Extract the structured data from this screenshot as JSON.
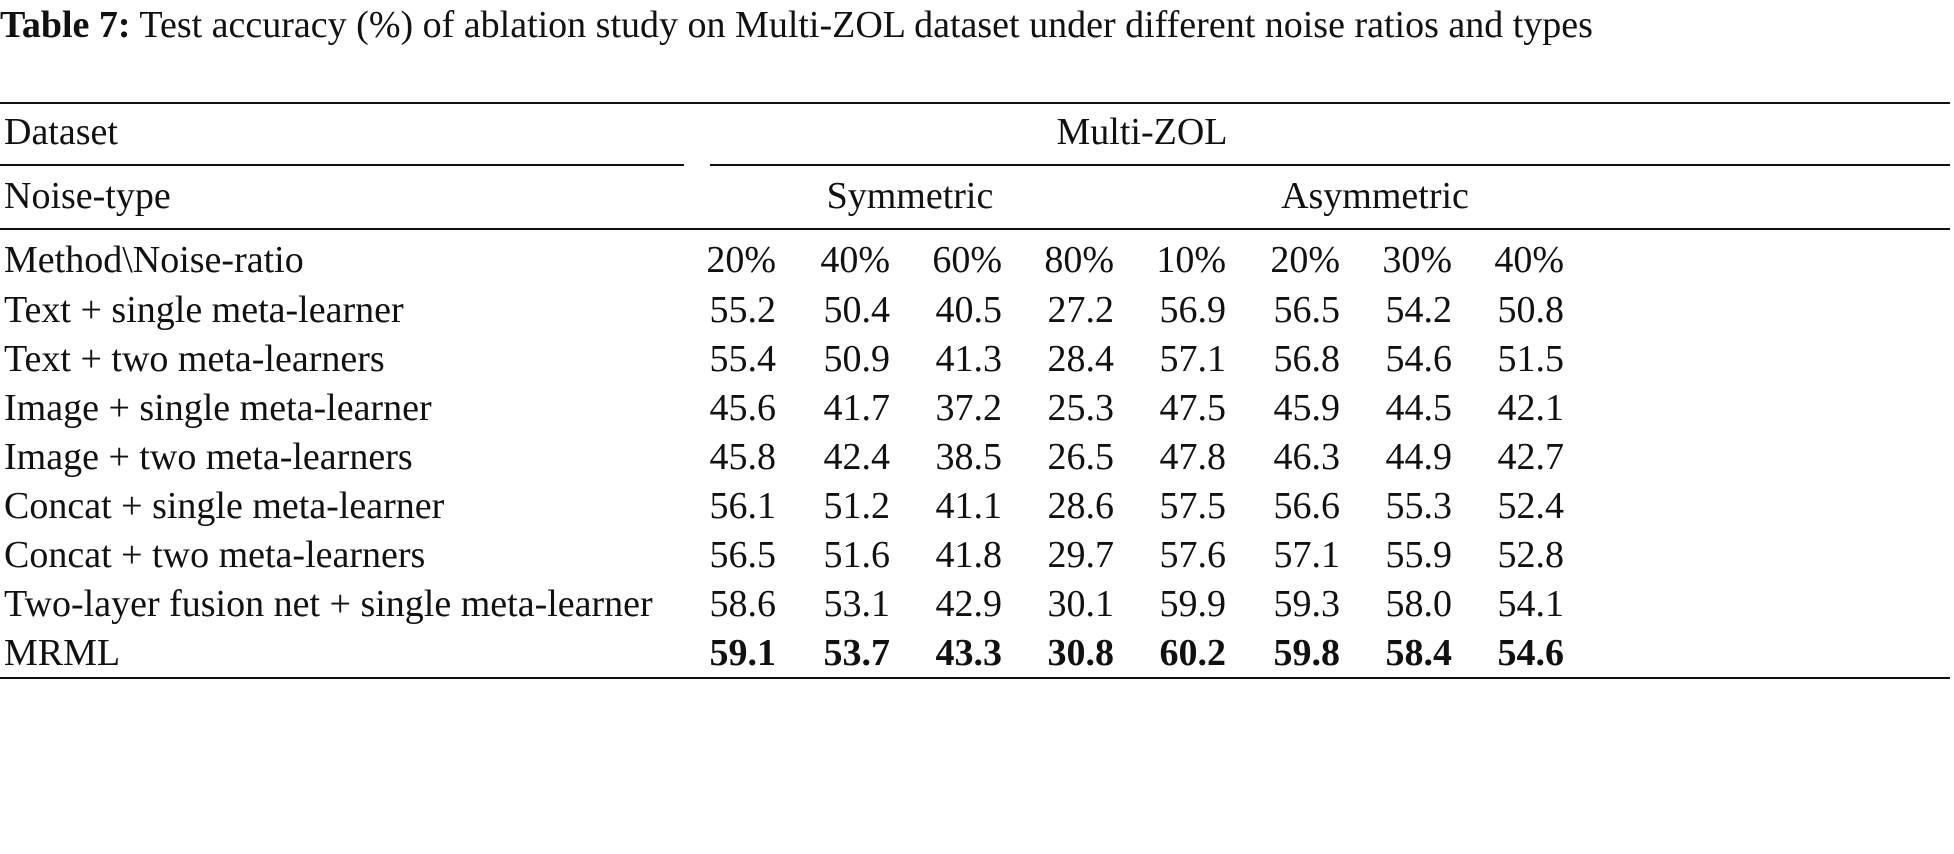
{
  "caption": {
    "label": "Table 7:",
    "text": "Test accuracy (%) of ablation study on Multi-ZOL dataset under different noise ratios and types"
  },
  "header": {
    "dataset_label": "Dataset",
    "dataset_value": "Multi-ZOL",
    "noise_type_label": "Noise-type",
    "symmetric": "Symmetric",
    "asymmetric": "Asymmetric",
    "method_label": "Method\\Noise-ratio",
    "ratios": [
      "20%",
      "40%",
      "60%",
      "80%",
      "10%",
      "20%",
      "30%",
      "40%"
    ]
  },
  "rows": [
    {
      "method": "Text + single meta-learner",
      "values": [
        "55.2",
        "50.4",
        "40.5",
        "27.2",
        "56.9",
        "56.5",
        "54.2",
        "50.8"
      ]
    },
    {
      "method": "Text + two meta-learners",
      "values": [
        "55.4",
        "50.9",
        "41.3",
        "28.4",
        "57.1",
        "56.8",
        "54.6",
        "51.5"
      ]
    },
    {
      "method": "Image + single meta-learner",
      "values": [
        "45.6",
        "41.7",
        "37.2",
        "25.3",
        "47.5",
        "45.9",
        "44.5",
        "42.1"
      ]
    },
    {
      "method": "Image + two meta-learners",
      "values": [
        "45.8",
        "42.4",
        "38.5",
        "26.5",
        "47.8",
        "46.3",
        "44.9",
        "42.7"
      ]
    },
    {
      "method": "Concat + single meta-learner",
      "values": [
        "56.1",
        "51.2",
        "41.1",
        "28.6",
        "57.5",
        "56.6",
        "55.3",
        "52.4"
      ]
    },
    {
      "method": "Concat + two meta-learners",
      "values": [
        "56.5",
        "51.6",
        "41.8",
        "29.7",
        "57.6",
        "57.1",
        "55.9",
        "52.8"
      ]
    },
    {
      "method": "Two-layer fusion net + single meta-learner",
      "values": [
        "58.6",
        "53.1",
        "42.9",
        "30.1",
        "59.9",
        "59.3",
        "58.0",
        "54.1"
      ]
    },
    {
      "method": "MRML",
      "values": [
        "59.1",
        "53.7",
        "43.3",
        "30.8",
        "60.2",
        "59.8",
        "58.4",
        "54.6"
      ],
      "bold": true
    }
  ]
}
